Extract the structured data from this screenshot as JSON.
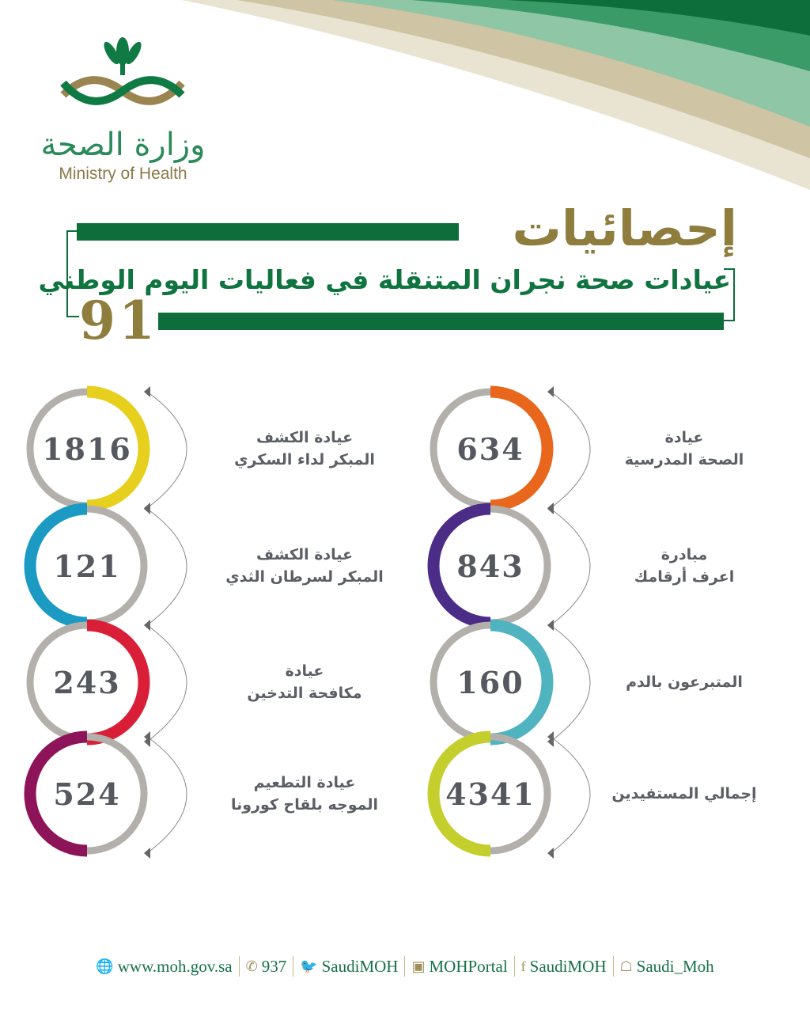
{
  "logo": {
    "arabic": "وزارة الصحة",
    "english": "Ministry of Health"
  },
  "header": {
    "title": "إحصائيات",
    "subtitle": "عيادات صحة نجران المتنقلة في فعاليات اليوم الوطني",
    "number": "91"
  },
  "colors": {
    "green": "#0d6e3b",
    "olive": "#8f7d3e",
    "ring_gray": "#b3b0ab"
  },
  "stats": [
    {
      "value": "634",
      "label_line1": "عيادة",
      "label_line2": "الصحة المدرسية",
      "color": "#e8671c",
      "half": "right",
      "col": "right",
      "row": 0
    },
    {
      "value": "843",
      "label_line1": "مبادرة",
      "label_line2": "اعرف أرقامك",
      "color": "#4b2c87",
      "half": "left",
      "col": "right",
      "row": 1
    },
    {
      "value": "160",
      "label_line1": "المتبرعون بالدم",
      "label_line2": "",
      "color": "#4fb3c0",
      "half": "right",
      "col": "right",
      "row": 2
    },
    {
      "value": "4341",
      "label_line1": "إجمالي المستفيدين",
      "label_line2": "",
      "color": "#c4cf2e",
      "half": "left",
      "col": "right",
      "row": 3
    },
    {
      "value": "1816",
      "label_line1": "عيادة الكشف",
      "label_line2": "المبكر لداء السكري",
      "color": "#e6cf1d",
      "half": "right",
      "col": "left",
      "row": 0
    },
    {
      "value": "121",
      "label_line1": "عيادة الكشف",
      "label_line2": "المبكر لسرطان الثدي",
      "color": "#1b9ac4",
      "half": "left",
      "col": "left",
      "row": 1
    },
    {
      "value": "243",
      "label_line1": "عيادة",
      "label_line2": "مكافحة التدخين",
      "color": "#d81f37",
      "half": "right",
      "col": "left",
      "row": 2
    },
    {
      "value": "524",
      "label_line1": "عيادة التطعيم",
      "label_line2": "الموجه بلقاح كورونا",
      "color": "#8e1459",
      "half": "left",
      "col": "left",
      "row": 3
    }
  ],
  "footer": [
    {
      "icon": "globe-icon",
      "glyph": "🌐",
      "text": "www.moh.gov.sa"
    },
    {
      "icon": "phone-icon",
      "glyph": "✆",
      "text": "937"
    },
    {
      "icon": "twitter-icon",
      "glyph": "🐦",
      "text": "SaudiMOH"
    },
    {
      "icon": "youtube-icon",
      "glyph": "▣",
      "text": "MOHPortal"
    },
    {
      "icon": "facebook-icon",
      "glyph": "f",
      "text": "SaudiMOH"
    },
    {
      "icon": "snapchat-icon",
      "glyph": "☖",
      "text": "Saudi_Moh"
    }
  ]
}
